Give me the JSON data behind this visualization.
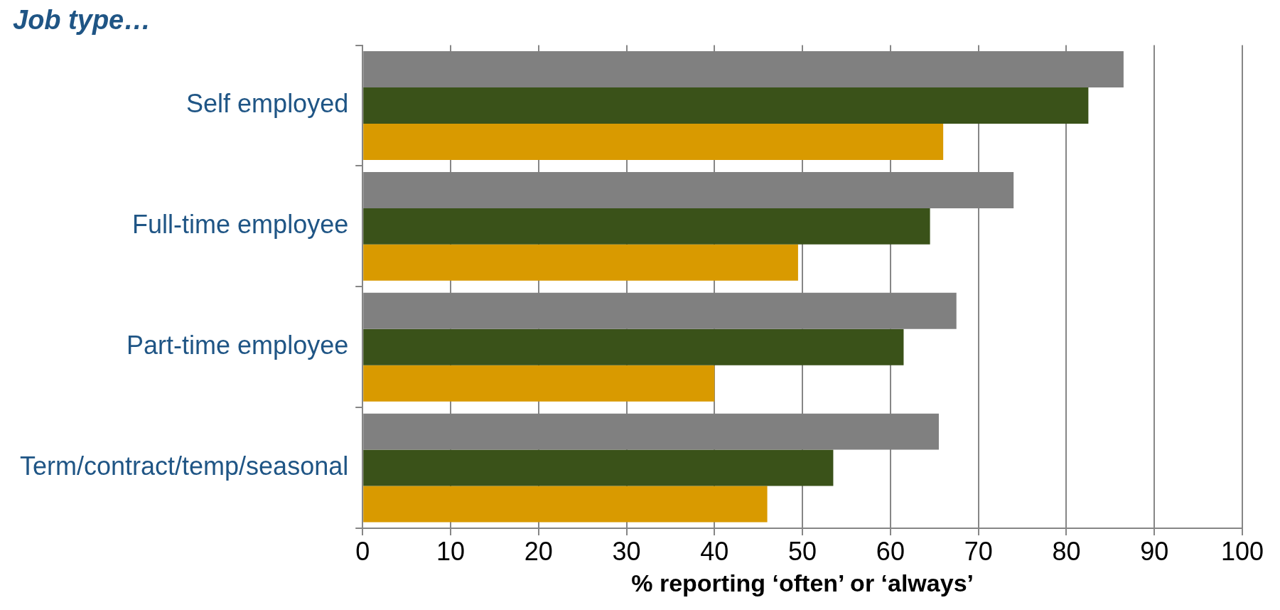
{
  "chart_data": {
    "type": "bar",
    "orientation": "horizontal",
    "title": "Job type…",
    "xlabel": "% reporting ‘often’ or ‘always’",
    "categories": [
      "Self employed",
      "Full-time employee",
      "Part-time employee",
      "Term/contract/temp/seasonal"
    ],
    "series": [
      {
        "color": "#808080",
        "values": [
          86.5,
          74,
          67.5,
          65.5
        ]
      },
      {
        "color": "#3a5219",
        "values": [
          82.5,
          64.5,
          61.5,
          53.5
        ]
      },
      {
        "color": "#d99a00",
        "values": [
          66,
          49.5,
          40,
          46
        ]
      }
    ],
    "xlim": [
      0,
      100
    ],
    "xticks": [
      0,
      10,
      20,
      30,
      40,
      50,
      60,
      70,
      80,
      90,
      100
    ],
    "grid": "x",
    "legend": false
  }
}
